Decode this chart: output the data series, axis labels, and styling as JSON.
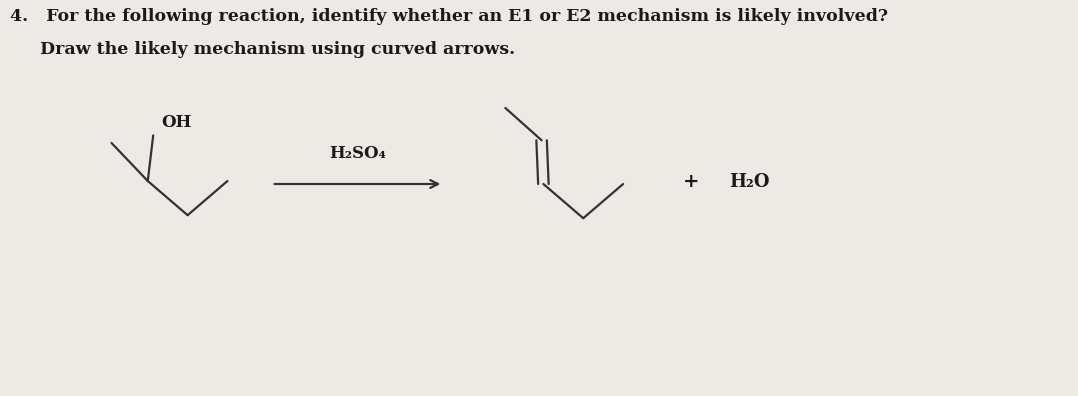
{
  "title_line1": "4.   For the following reaction, identify whether an E1 or E2 mechanism is likely involved?",
  "title_line2": "     Draw the likely mechanism using curved arrows.",
  "reagent": "H₂SO₄",
  "product_plus": "•",
  "byproduct": "H₂O",
  "bg_color": "#edeae5",
  "text_color": "#1a1a1a",
  "line_color": "#333333",
  "font_size_title": 12.5,
  "font_size_chem": 11
}
